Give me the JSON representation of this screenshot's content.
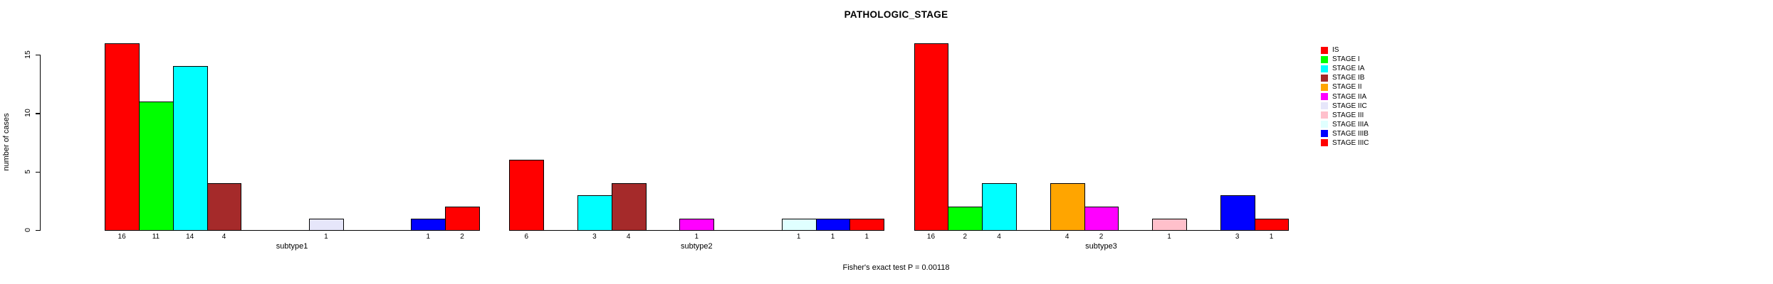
{
  "figure": {
    "title": "PATHOLOGIC_STAGE",
    "ylabel": "number of cases",
    "footnote": "Fisher's exact test P = 0.00118"
  },
  "chart_data": {
    "type": "bar",
    "title": "PATHOLOGIC_STAGE",
    "xlabel": "",
    "ylabel": "number of cases",
    "ylim": [
      0,
      16.5
    ],
    "yticks": [
      0,
      5,
      10,
      15
    ],
    "grid": false,
    "legend_position": "right",
    "bar_border_color": "#000000",
    "categories": [
      "subtype1",
      "subtype2",
      "subtype3"
    ],
    "series": [
      {
        "name": "IS",
        "color": "#FF0000",
        "values": [
          16,
          6,
          16
        ]
      },
      {
        "name": "STAGE I",
        "color": "#00FF00",
        "values": [
          11,
          0,
          2
        ]
      },
      {
        "name": "STAGE IA",
        "color": "#00FFFF",
        "values": [
          14,
          3,
          4
        ]
      },
      {
        "name": "STAGE IB",
        "color": "#A52A2A",
        "values": [
          4,
          4,
          0
        ]
      },
      {
        "name": "STAGE II",
        "color": "#FFA500",
        "values": [
          0,
          0,
          4
        ]
      },
      {
        "name": "STAGE IIA",
        "color": "#FF00FF",
        "values": [
          0,
          1,
          2
        ]
      },
      {
        "name": "STAGE IIC",
        "color": "#E6E6FA",
        "values": [
          1,
          0,
          0
        ]
      },
      {
        "name": "STAGE III",
        "color": "#FFC0CB",
        "values": [
          0,
          0,
          1
        ]
      },
      {
        "name": "STAGE IIIA",
        "color": "#E0FFFF",
        "values": [
          0,
          1,
          0
        ]
      },
      {
        "name": "STAGE IIIB",
        "color": "#0000FF",
        "values": [
          1,
          1,
          3
        ]
      },
      {
        "name": "STAGE IIIC",
        "color": "#FF0000",
        "values": [
          2,
          1,
          1
        ]
      }
    ],
    "annotations": [
      "Fisher's exact test P = 0.00118"
    ]
  }
}
